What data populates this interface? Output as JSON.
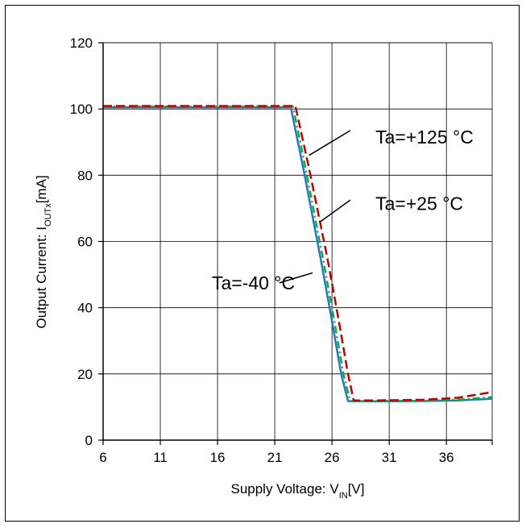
{
  "chart_data": {
    "type": "line",
    "xlabel": {
      "main": "Supply Voltage: V",
      "sub": "IN",
      "tail": "[V]"
    },
    "ylabel": {
      "main": "Output Current: I",
      "sub": "OUTx",
      "tail": "[mA]"
    },
    "xlim": [
      6,
      40
    ],
    "ylim": [
      0,
      120
    ],
    "xticks": [
      6,
      11,
      16,
      21,
      26,
      31,
      36
    ],
    "yticks": [
      0,
      20,
      40,
      60,
      80,
      100,
      120
    ],
    "grid": true,
    "series": [
      {
        "name": "Ta=-40 °C",
        "color": "#2e75b6",
        "dash": "solid",
        "x": [
          6,
          22.4,
          23.5,
          25.0,
          26.0,
          26.8,
          27.4,
          30,
          34,
          37,
          40
        ],
        "y": [
          100.5,
          100.5,
          82,
          55,
          36,
          20,
          11.8,
          11.7,
          11.8,
          12.0,
          12.5
        ]
      },
      {
        "name": "Ta=+25 °C",
        "color": "#00b050",
        "dash": "dashdot",
        "x": [
          6,
          22.6,
          23.7,
          25.2,
          26.2,
          27.0,
          27.6,
          30,
          34,
          37,
          40
        ],
        "y": [
          100.7,
          100.7,
          82,
          55,
          36,
          20,
          11.8,
          11.8,
          11.9,
          12.2,
          13.0
        ]
      },
      {
        "name": "Ta=+125 °C",
        "color": "#c00000",
        "dash": "dashed",
        "x": [
          6,
          22.8,
          24.0,
          25.6,
          26.6,
          27.4,
          27.9,
          30,
          34,
          37,
          40
        ],
        "y": [
          100.9,
          100.9,
          82,
          55,
          36,
          20,
          12.0,
          12.0,
          12.2,
          12.8,
          14.5
        ]
      }
    ],
    "annotations": [
      {
        "text": "Ta=+125 °C",
        "x": 29.8,
        "y": 89.6,
        "arrow_to": [
          24.0,
          86.0
        ],
        "arrow_from": [
          27.6,
          93.5
        ]
      },
      {
        "text": "Ta=+25 °C",
        "x": 29.8,
        "y": 69.5,
        "arrow_to": [
          25.0,
          66.0
        ],
        "arrow_from": [
          27.6,
          72.5
        ]
      },
      {
        "text": "Ta=-40 °C",
        "x": 15.5,
        "y": 45.5,
        "arrow_to": [
          24.3,
          50.5
        ],
        "arrow_from": [
          21.4,
          47.5
        ]
      }
    ]
  }
}
